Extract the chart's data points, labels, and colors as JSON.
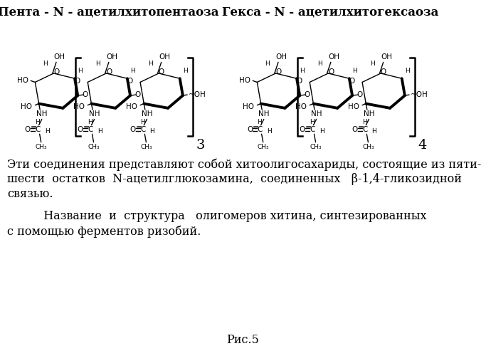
{
  "title_left": "Пента - N - ацетилхитопентаоза",
  "title_right": "Гекса - N - ацетилхитогексаоза",
  "p1l1": "Эти соединения представляют собой хитоолигосахариды, состоящие из пяти-",
  "p1l2": "шести  остатков  N-ацетилглюкозамина,  соединенных   β-1,4-гликозидной",
  "p1l3": "связью.",
  "p2l1": "          Название  и  структура   олигомеров хитина, синтезированных",
  "p2l2": "с помощью ферментов ризобий.",
  "caption": "Рис.5",
  "bg_color": "#ffffff",
  "text_color": "#000000"
}
